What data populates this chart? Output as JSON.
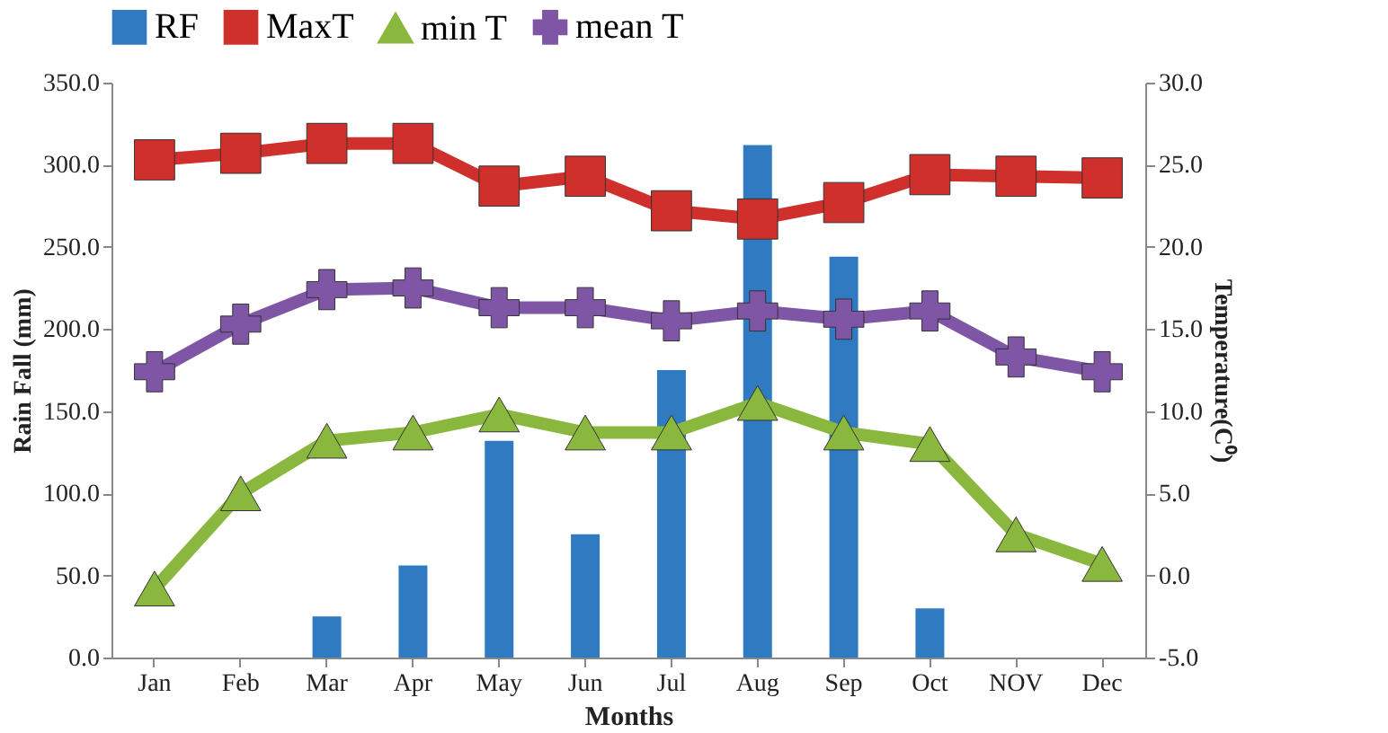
{
  "chart_data": {
    "type": "bar",
    "xlabel": "Months",
    "ylabel": "Rain Fall (mm)",
    "y2label": "Temperature(C⁰)",
    "categories": [
      "Jan",
      "Feb",
      "Mar",
      "Apr",
      "May",
      "Jun",
      "Jul",
      "Aug",
      "Sep",
      "Oct",
      "NOV",
      "Dec"
    ],
    "series": [
      {
        "name": "RF",
        "color": "#2f7ac0",
        "values": [
          null,
          null,
          25,
          56,
          132,
          75,
          175,
          312,
          244,
          30,
          null,
          null
        ]
      },
      {
        "name": "MaxT",
        "type": "line",
        "axis": "y2",
        "marker": "square",
        "color": "#d0302b",
        "values": [
          25.3,
          25.7,
          26.3,
          26.3,
          23.7,
          24.3,
          22.2,
          21.7,
          22.7,
          24.4,
          24.3,
          24.2
        ]
      },
      {
        "name": "min T",
        "type": "line",
        "axis": "y2",
        "marker": "triangle",
        "color": "#8ab83f",
        "values": [
          -0.8,
          5.0,
          8.2,
          8.7,
          9.8,
          8.7,
          8.7,
          10.5,
          8.7,
          8.0,
          2.5,
          0.7
        ]
      },
      {
        "name": "mean T",
        "type": "line",
        "axis": "y2",
        "marker": "cross",
        "color": "#7f55a5",
        "values": [
          12.4,
          15.3,
          17.4,
          17.5,
          16.3,
          16.3,
          15.5,
          16.1,
          15.6,
          16.1,
          13.3,
          12.4
        ]
      }
    ],
    "ylim": [
      0,
      350
    ],
    "yticks": [
      {
        "value": 0,
        "label": "0.0"
      },
      {
        "value": 50,
        "label": "50.0"
      },
      {
        "value": 100,
        "label": "100.0"
      },
      {
        "value": 150,
        "label": "150.0"
      },
      {
        "value": 200,
        "label": "200.0"
      },
      {
        "value": 250,
        "label": "250.0"
      },
      {
        "value": 300,
        "label": "300.0"
      },
      {
        "value": 350,
        "label": "350.0"
      }
    ],
    "y2lim": [
      -5,
      30
    ],
    "y2ticks": [
      {
        "value": -5,
        "label": "-5.0"
      },
      {
        "value": 0,
        "label": "0.0"
      },
      {
        "value": 5,
        "label": "5.0"
      },
      {
        "value": 10,
        "label": "10.0"
      },
      {
        "value": 15,
        "label": "15.0"
      },
      {
        "value": 20,
        "label": "20.0"
      },
      {
        "value": 25,
        "label": "25.0"
      },
      {
        "value": 30,
        "label": "30.0"
      }
    ],
    "grid": false,
    "legend": "top"
  }
}
